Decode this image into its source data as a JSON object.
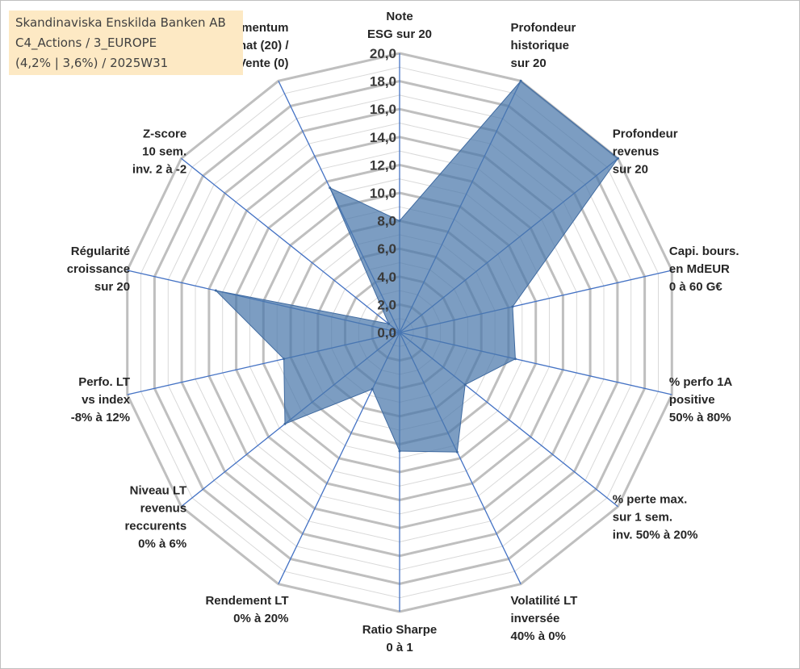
{
  "info_box": {
    "line1": "Skandinaviska Enskilda Banken AB",
    "line2": "C4_Actions / 3_EUROPE",
    "line3": "(4,2% | 3,6%) / 2025W31"
  },
  "colors": {
    "fill": "#4a77aa",
    "fill_opacity": 0.72,
    "series_stroke": "#3f6aa0",
    "spoke": "#4472c4",
    "ring": "#bfbfbf",
    "minor_ring": "#d9d9d9"
  },
  "chart_data": {
    "type": "radar",
    "title": "",
    "rmin": 0,
    "rmax": 20,
    "tick_step": 2,
    "tick_labels": [
      "0,0",
      "2,0",
      "4,0",
      "6,0",
      "8,0",
      "10,0",
      "12,0",
      "14,0",
      "16,0",
      "18,0",
      "20,0"
    ],
    "axes": [
      {
        "lines": [
          "Note",
          "ESG sur 20"
        ]
      },
      {
        "lines": [
          "Profondeur",
          "historique",
          "sur 20"
        ]
      },
      {
        "lines": [
          "Profondeur",
          "revenus",
          "sur 20"
        ]
      },
      {
        "lines": [
          "Capi. bours.",
          "en MdEUR",
          "0 à 60 G€"
        ]
      },
      {
        "lines": [
          "% perfo 1A",
          "positive",
          "50% à 80%"
        ]
      },
      {
        "lines": [
          "% perte max.",
          "sur 1 sem.",
          "inv. 50% à 20%"
        ]
      },
      {
        "lines": [
          "Volatilité LT",
          "inversée",
          "40% à 0%"
        ]
      },
      {
        "lines": [
          "Ratio Sharpe",
          "0 à 1"
        ]
      },
      {
        "lines": [
          "Rendement LT",
          "0% à 20%"
        ]
      },
      {
        "lines": [
          "Niveau LT",
          "revenus",
          "reccurents",
          "0% à 6%"
        ]
      },
      {
        "lines": [
          "Perfo. LT",
          "vs index",
          "-8% à 12%"
        ]
      },
      {
        "lines": [
          "Régularité",
          "croissance",
          "sur 20"
        ]
      },
      {
        "lines": [
          "Z-score",
          "10 sem.",
          "inv. 2 à -2"
        ]
      },
      {
        "lines": [
          "Momentum",
          "Achat (20) /",
          "Vente (0)"
        ]
      }
    ],
    "series": [
      {
        "values": [
          8.0,
          20.0,
          20.0,
          8.3,
          8.5,
          6.0,
          9.5,
          8.5,
          4.5,
          10.5,
          8.5,
          13.5,
          1.0,
          11.5
        ]
      }
    ],
    "grid": true,
    "legend": "none"
  }
}
